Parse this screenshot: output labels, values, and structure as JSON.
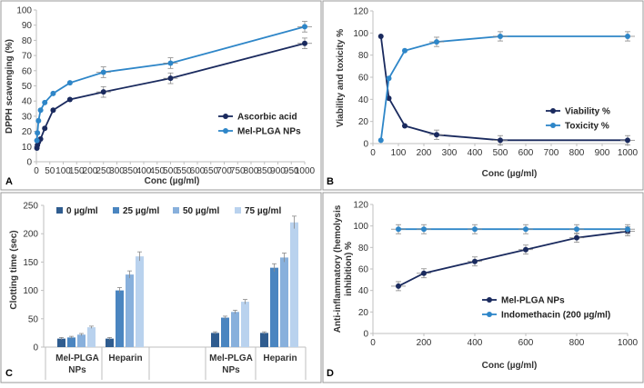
{
  "colors": {
    "navy": "#1a2a5e",
    "blue": "#2e86c8",
    "axis": "#bfbfbf",
    "text": "#333333"
  },
  "chart_data": [
    {
      "panel": "A",
      "type": "line",
      "xlabel": "Conc (µg/ml)",
      "ylabel": "DPPH scavenging (%)",
      "xlim": [
        0,
        1000
      ],
      "ylim": [
        0,
        100
      ],
      "xticks": [
        "0",
        "50",
        "100",
        "150",
        "200",
        "250",
        "300",
        "350",
        "400",
        "450",
        "500",
        "550",
        "600",
        "650",
        "700",
        "750",
        "800",
        "850",
        "900",
        "950",
        "1000"
      ],
      "yticks": [
        "0",
        "10",
        "20",
        "30",
        "40",
        "50",
        "60",
        "70",
        "80",
        "90",
        "100"
      ],
      "legend": [
        "Ascorbic acid",
        "Mel-PLGA NPs"
      ],
      "series": [
        {
          "name": "Ascorbic acid",
          "color": "#1a2a5e",
          "x": [
            1.95,
            3.9,
            7.8,
            15.6,
            31.25,
            62.5,
            125,
            250,
            500,
            1000
          ],
          "y": [
            9,
            11,
            13,
            15,
            22,
            34,
            41,
            46,
            55,
            78
          ]
        },
        {
          "name": "Mel-PLGA NPs",
          "color": "#2e86c8",
          "x": [
            1.95,
            3.9,
            7.8,
            15.6,
            31.25,
            62.5,
            125,
            250,
            500,
            1000
          ],
          "y": [
            14,
            19,
            27,
            34,
            39,
            45,
            52,
            59,
            65,
            89
          ]
        }
      ]
    },
    {
      "panel": "B",
      "type": "line",
      "xlabel": "Conc (µg/ml)",
      "ylabel": "Viability and toxicity %",
      "xlim": [
        0,
        1000
      ],
      "ylim": [
        0,
        120
      ],
      "xticks": [
        "0",
        "100",
        "200",
        "300",
        "400",
        "500",
        "600",
        "700",
        "800",
        "900",
        "1000"
      ],
      "yticks": [
        "0",
        "20",
        "40",
        "60",
        "80",
        "100",
        "120"
      ],
      "legend": [
        "Viability %",
        "Toxicity %"
      ],
      "series": [
        {
          "name": "Viability %",
          "color": "#1a2a5e",
          "x": [
            31.25,
            62.5,
            125,
            250,
            500,
            1000
          ],
          "y": [
            97,
            41,
            16,
            8,
            3,
            3
          ]
        },
        {
          "name": "Toxicity %",
          "color": "#2e86c8",
          "x": [
            31.25,
            62.5,
            125,
            250,
            500,
            1000
          ],
          "y": [
            3,
            59,
            84,
            92,
            97,
            97
          ]
        }
      ]
    },
    {
      "panel": "C",
      "type": "bar",
      "ylabel": "Clotting time (sec)",
      "ylim": [
        0,
        250
      ],
      "yticks": [
        "0",
        "50",
        "100",
        "150",
        "200",
        "250"
      ],
      "legend": [
        "0 µg/ml",
        "25 µg/ml",
        "50 µg/ml",
        "75 µg/ml"
      ],
      "group_labels": [
        "Mel-PLGA NPs",
        "Heparin",
        "Mel-PLGA NPs",
        "Heparin"
      ],
      "series": [
        {
          "name": "0 µg/ml",
          "color": "#2f5c8f",
          "values": [
            15,
            15,
            25,
            25
          ]
        },
        {
          "name": "25 µg/ml",
          "color": "#4a85c0",
          "values": [
            17,
            100,
            52,
            140
          ]
        },
        {
          "name": "50 µg/ml",
          "color": "#88b0dc",
          "values": [
            22,
            128,
            62,
            158
          ]
        },
        {
          "name": "75 µg/ml",
          "color": "#b9d2ee",
          "values": [
            35,
            160,
            80,
            220
          ]
        }
      ]
    },
    {
      "panel": "D",
      "type": "line",
      "xlabel": "Conc (µg/ml)",
      "ylabel": "Anti-inflammatory (hemolysis inhibition) %",
      "ylabel_lines": [
        "Anti-inflammatory (hemolysis",
        "inhibition) %"
      ],
      "xlim": [
        0,
        1000
      ],
      "ylim": [
        0,
        120
      ],
      "xticks": [
        "0",
        "200",
        "400",
        "600",
        "800",
        "1000"
      ],
      "yticks": [
        "0",
        "20",
        "40",
        "60",
        "80",
        "100",
        "120"
      ],
      "legend": [
        "Mel-PLGA NPs",
        "Indomethacin (200 µg/ml)"
      ],
      "series": [
        {
          "name": "Mel-PLGA NPs",
          "color": "#1a2a5e",
          "x": [
            100,
            200,
            400,
            600,
            800,
            1000
          ],
          "y": [
            44,
            56,
            67,
            78,
            89,
            95
          ]
        },
        {
          "name": "Indomethacin (200 µg/ml)",
          "color": "#2e86c8",
          "x": [
            100,
            200,
            400,
            600,
            800,
            1000
          ],
          "y": [
            97,
            97,
            97,
            97,
            97,
            97
          ]
        }
      ]
    }
  ]
}
